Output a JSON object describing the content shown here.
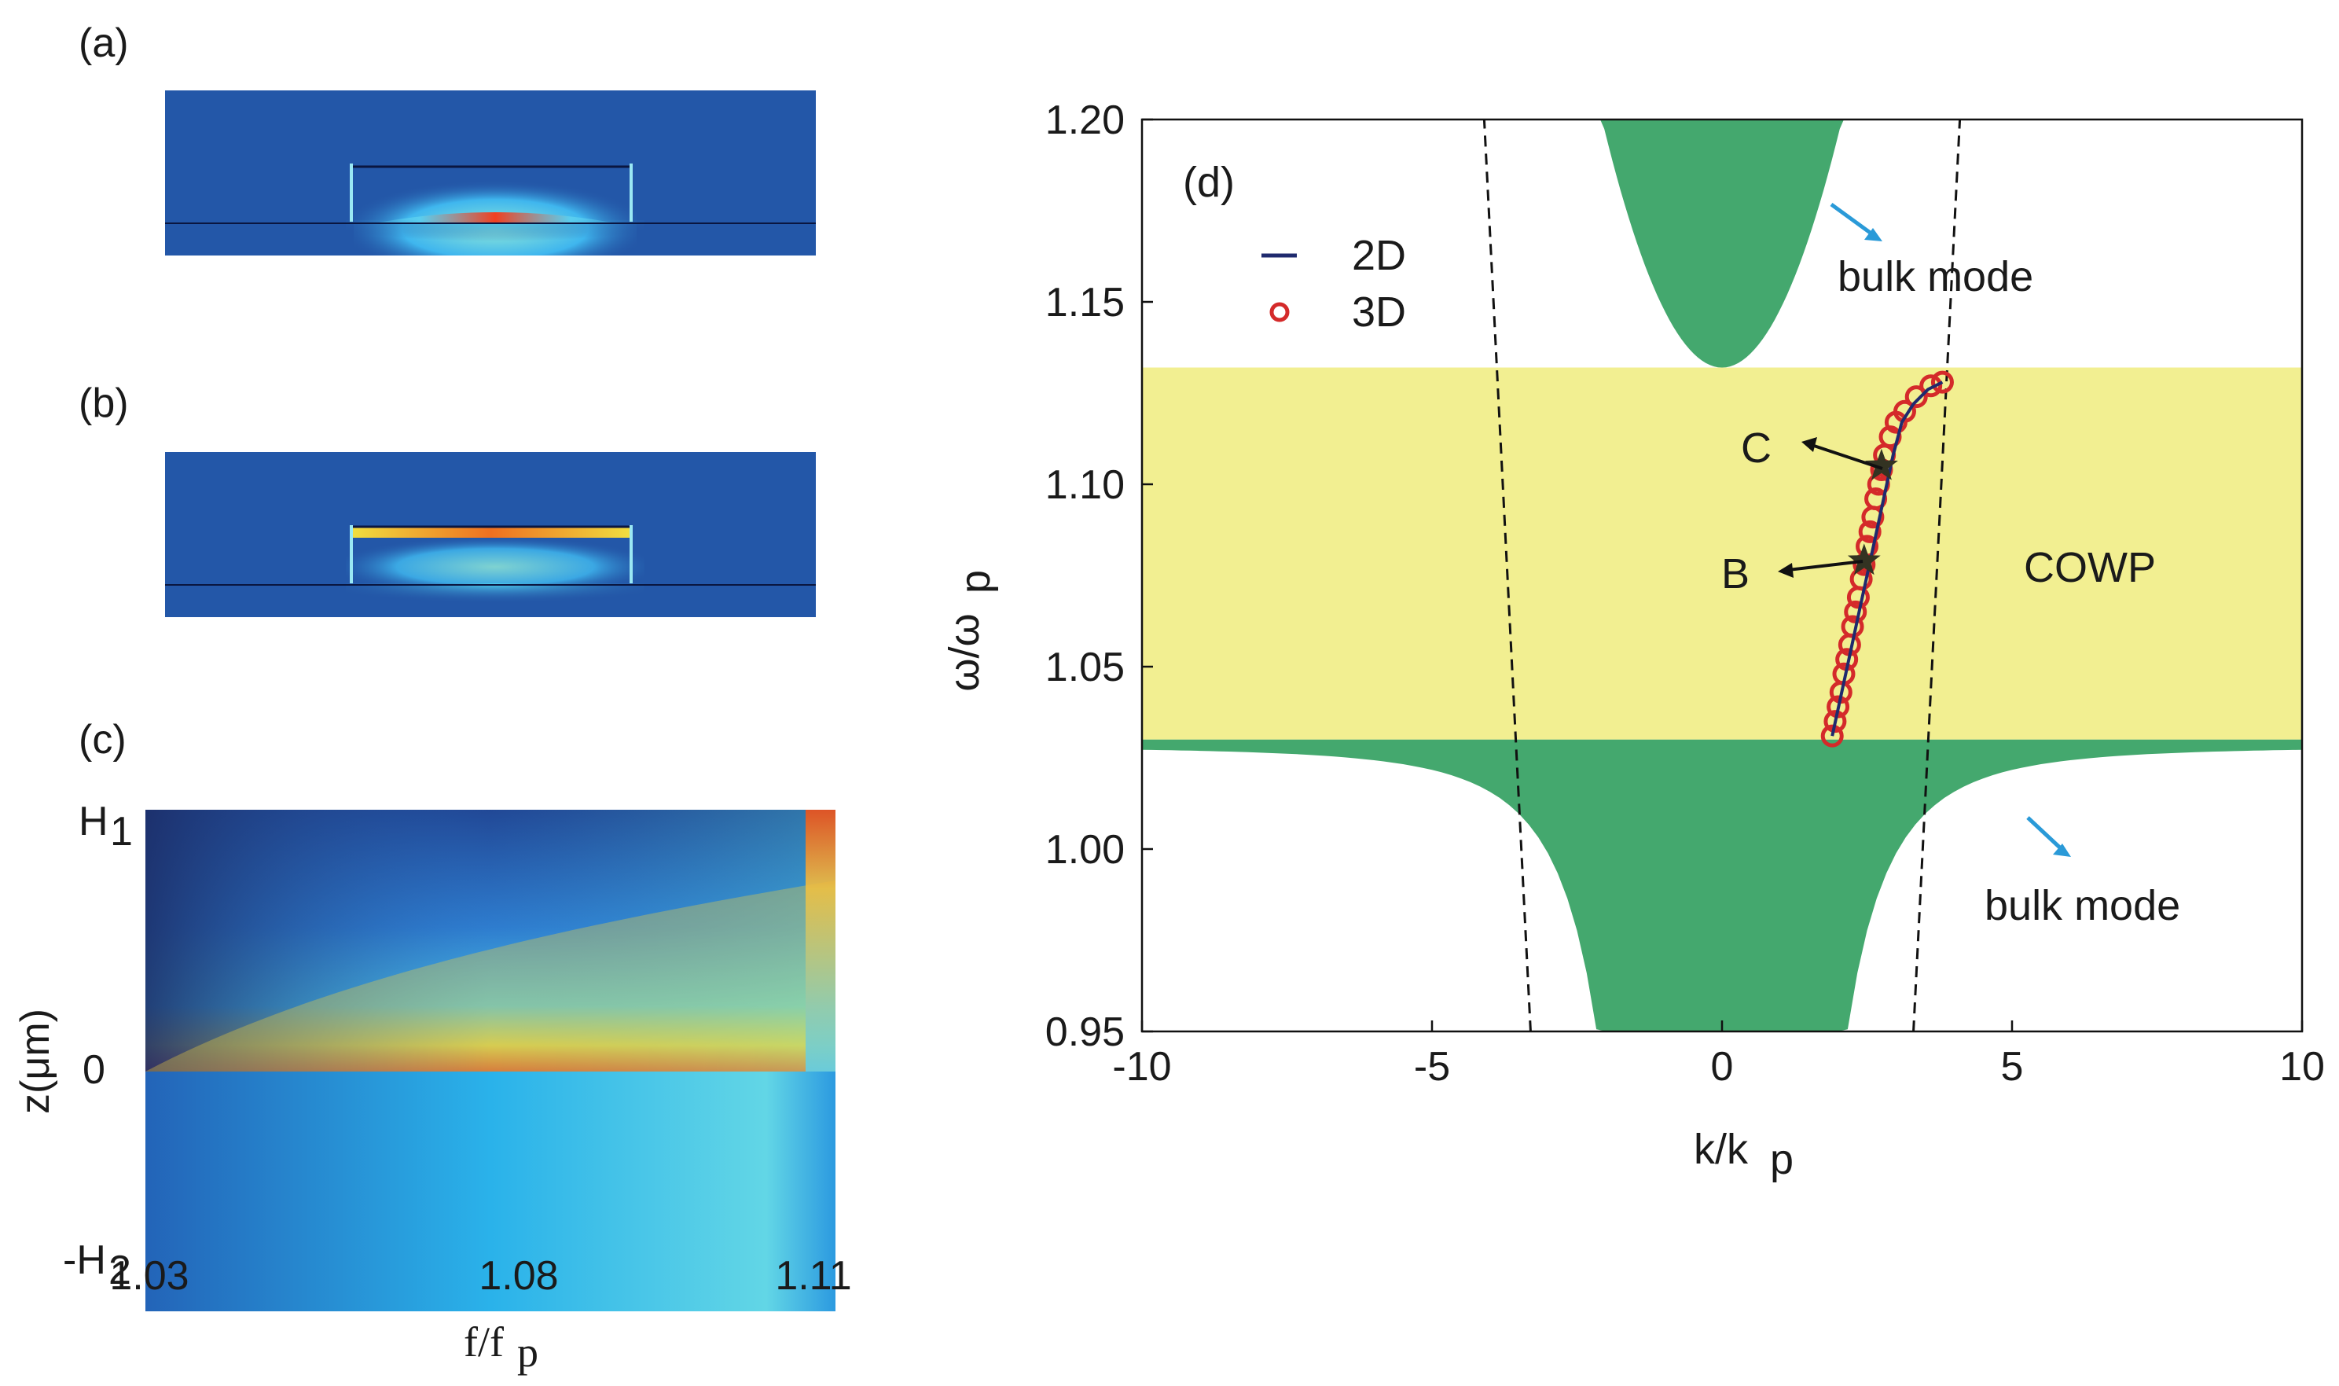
{
  "panels": {
    "a_label": "(a)",
    "b_label": "(b)",
    "c_label": "(c)",
    "d_label": "(d)"
  },
  "panel_c": {
    "y_ticks": [
      "H",
      "0",
      "-H"
    ],
    "y_tick_subs": [
      "1",
      "2"
    ],
    "ylabel": "z(μm)",
    "x_ticks": [
      "1.03",
      "1.08",
      "1.11"
    ],
    "xlabel_main": "f/f",
    "xlabel_sub": "p"
  },
  "chart_data": {
    "type": "line",
    "title": "(d)",
    "xlabel": "k/k",
    "xlabel_sub": "p",
    "ylabel": "ω/ω",
    "ylabel_sub": "p",
    "xlim": [
      -10,
      10
    ],
    "ylim": [
      0.95,
      1.2
    ],
    "x_ticks": [
      -10,
      -5,
      0,
      5,
      10
    ],
    "y_ticks": [
      0.95,
      1.0,
      1.05,
      1.1,
      1.15,
      1.2
    ],
    "x_tick_labels": [
      "-10",
      "-5",
      "0",
      "5",
      "10"
    ],
    "y_tick_labels": [
      "0.95",
      "1.00",
      "1.05",
      "1.10",
      "1.15",
      "1.20"
    ],
    "band_region": {
      "label": "COWP",
      "y_range": [
        1.03,
        1.132
      ],
      "color": "#f2ef91"
    },
    "bulk_upper": {
      "label": "bulk mode",
      "min_y": 1.132,
      "color": "#44a86e"
    },
    "bulk_lower": {
      "label": "bulk mode",
      "max_y": 1.03,
      "color": "#44a86e"
    },
    "light_lines": [
      {
        "x": [
          -3.3,
          -4.1
        ],
        "y": [
          0.95,
          1.2
        ]
      },
      {
        "x": [
          3.3,
          4.1
        ],
        "y": [
          0.95,
          1.2
        ]
      }
    ],
    "series": [
      {
        "name": "2D",
        "color": "#1f2a6e",
        "x": [
          1.9,
          2.05,
          2.2,
          2.35,
          2.5,
          2.65,
          2.8,
          2.95,
          3.1,
          3.3,
          3.55,
          3.8
        ],
        "y": [
          1.031,
          1.042,
          1.053,
          1.064,
          1.075,
          1.086,
          1.097,
          1.108,
          1.117,
          1.122,
          1.126,
          1.128
        ]
      },
      {
        "name": "3D",
        "color": "#d42a2a",
        "x": [
          1.9,
          1.95,
          2.0,
          2.05,
          2.1,
          2.15,
          2.2,
          2.25,
          2.3,
          2.35,
          2.4,
          2.45,
          2.5,
          2.55,
          2.6,
          2.65,
          2.7,
          2.75,
          2.8,
          2.9,
          3.0,
          3.15,
          3.35,
          3.6,
          3.8
        ],
        "y": [
          1.031,
          1.035,
          1.039,
          1.043,
          1.048,
          1.052,
          1.056,
          1.061,
          1.065,
          1.069,
          1.074,
          1.078,
          1.083,
          1.087,
          1.091,
          1.096,
          1.1,
          1.104,
          1.108,
          1.113,
          1.117,
          1.12,
          1.124,
          1.127,
          1.128
        ]
      }
    ],
    "markers": [
      {
        "label": "B",
        "x": 2.45,
        "y": 1.079
      },
      {
        "label": "C",
        "x": 2.75,
        "y": 1.105
      }
    ],
    "legend": [
      "2D",
      "3D"
    ],
    "legend_position": "top-left"
  }
}
